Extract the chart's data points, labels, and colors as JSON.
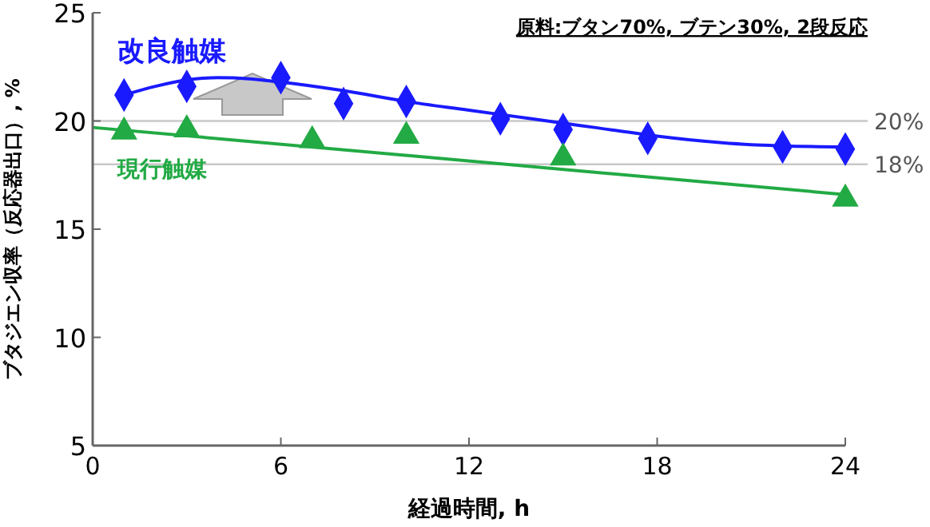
{
  "chart_data": {
    "type": "scatter",
    "xlabel": "経過時間, h",
    "ylabel": "ブタジエン収率（反応器出口）, %",
    "xlim": [
      0,
      24
    ],
    "ylim": [
      5,
      25
    ],
    "xticks": [
      0,
      6,
      12,
      18,
      24
    ],
    "yticks": [
      5,
      10,
      15,
      20,
      25
    ],
    "grid": false,
    "annotations": [
      "原料:ブタン70%, ブテン30%, 2段反応"
    ],
    "ref_lines": [
      {
        "axis": "y",
        "value": 20,
        "label": "20%",
        "color": "#c8c8c8"
      },
      {
        "axis": "y",
        "value": 18,
        "label": "18%",
        "color": "#c8c8c8"
      }
    ],
    "series": [
      {
        "type": "line",
        "color": "#1a1aff",
        "x": [
          1,
          2,
          3,
          4,
          5,
          6,
          8,
          10,
          12,
          14,
          15,
          16,
          18,
          20,
          21,
          22,
          24
        ],
        "values": [
          21.2,
          21.6,
          21.9,
          22.0,
          21.95,
          21.8,
          21.4,
          20.9,
          20.5,
          20.1,
          19.9,
          19.7,
          19.3,
          19.0,
          18.9,
          18.85,
          18.8
        ]
      },
      {
        "type": "line",
        "color": "#22aa44",
        "x": [
          0,
          24
        ],
        "values": [
          19.7,
          16.6
        ]
      },
      {
        "name": "改良触媒",
        "color": "#1a1aff",
        "marker": "diamond",
        "x": [
          1,
          3,
          6,
          8,
          10,
          13,
          15,
          17.7,
          22,
          24
        ],
        "values": [
          21.2,
          21.6,
          22.0,
          20.8,
          20.9,
          20.1,
          19.6,
          19.2,
          18.8,
          18.7
        ]
      },
      {
        "name": "現行触媒",
        "color": "#22aa44",
        "marker": "triangle",
        "x": [
          1,
          3,
          7,
          10,
          15,
          24
        ],
        "values": [
          19.5,
          19.6,
          19.1,
          19.3,
          18.3,
          16.4
        ]
      }
    ]
  }
}
